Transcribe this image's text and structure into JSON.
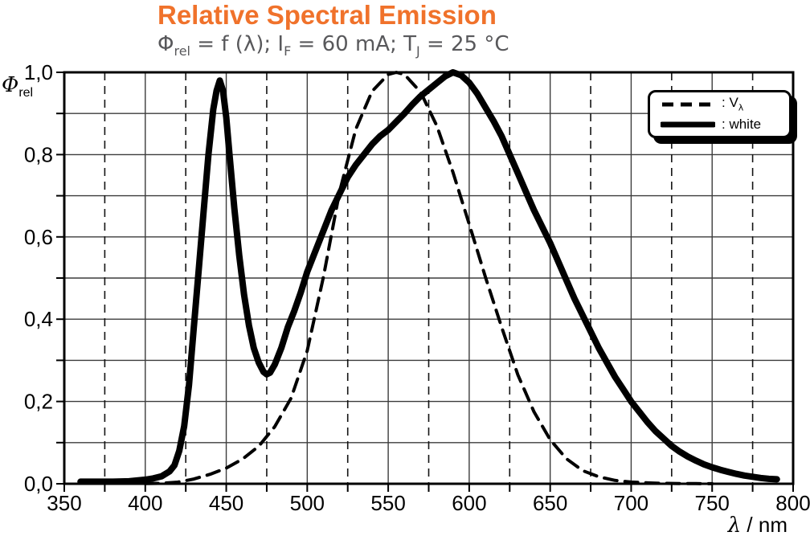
{
  "title": {
    "text": "Relative Spectral Emission",
    "color": "#F0722B"
  },
  "subtitle": {
    "color": "#58585B",
    "s1": "Φ",
    "s1sub": "rel",
    "s2": " = f (λ); I",
    "s2sub": "F",
    "s3": " = 60 mA; T",
    "s3sub": "J",
    "s4": " = 25 °C"
  },
  "legend": {
    "v_prefix": ": V",
    "v_sub": "λ",
    "white_label": ": white"
  },
  "chart_data": {
    "type": "line",
    "title": "Relative Spectral Emission",
    "subtitle_plain": "Phi_rel = f(lambda); I_F = 60 mA; T_J = 25 °C",
    "xlabel": {
      "greek": "λ",
      "rest": " / nm"
    },
    "ylabel": {
      "greek": "Φ",
      "sub": "rel"
    },
    "xlim": [
      350,
      800
    ],
    "ylim": [
      0,
      1
    ],
    "x_major_step": 50,
    "x_minor_step": 25,
    "y_minor_step": 0.1,
    "grid": {
      "solid_color": "#3C3C3C",
      "dashed_color": "#141414"
    },
    "axis_color": "#000000",
    "legend_position": "top-right",
    "x_tick_labels": [
      {
        "v": 350,
        "label": "350"
      },
      {
        "v": 400,
        "label": "400"
      },
      {
        "v": 450,
        "label": "450"
      },
      {
        "v": 500,
        "label": "500"
      },
      {
        "v": 550,
        "label": "550"
      },
      {
        "v": 600,
        "label": "600"
      },
      {
        "v": 650,
        "label": "650"
      },
      {
        "v": 700,
        "label": "700"
      },
      {
        "v": 750,
        "label": "750"
      },
      {
        "v": 800,
        "label": "800"
      }
    ],
    "y_tick_labels": [
      {
        "v": 0.0,
        "label": "0,0"
      },
      {
        "v": 0.2,
        "label": "0,2"
      },
      {
        "v": 0.4,
        "label": "0,4"
      },
      {
        "v": 0.6,
        "label": "0,6"
      },
      {
        "v": 0.8,
        "label": "0,8"
      },
      {
        "v": 1.0,
        "label": "1,0"
      }
    ],
    "series": [
      {
        "name": "V_lambda",
        "label": ": V_lambda",
        "style": "dashed",
        "stroke_width": 4,
        "dash": "16 10",
        "color": "#000000",
        "points": [
          [
            400,
            0.0004
          ],
          [
            410,
            0.0012
          ],
          [
            420,
            0.004
          ],
          [
            430,
            0.0116
          ],
          [
            440,
            0.023
          ],
          [
            450,
            0.038
          ],
          [
            460,
            0.06
          ],
          [
            470,
            0.091
          ],
          [
            480,
            0.139
          ],
          [
            490,
            0.208
          ],
          [
            500,
            0.323
          ],
          [
            510,
            0.503
          ],
          [
            520,
            0.71
          ],
          [
            530,
            0.862
          ],
          [
            540,
            0.954
          ],
          [
            550,
            0.995
          ],
          [
            555,
            1.0
          ],
          [
            560,
            0.995
          ],
          [
            570,
            0.952
          ],
          [
            580,
            0.87
          ],
          [
            590,
            0.757
          ],
          [
            600,
            0.631
          ],
          [
            610,
            0.503
          ],
          [
            620,
            0.381
          ],
          [
            630,
            0.265
          ],
          [
            640,
            0.175
          ],
          [
            650,
            0.107
          ],
          [
            660,
            0.061
          ],
          [
            670,
            0.032
          ],
          [
            680,
            0.017
          ],
          [
            690,
            0.0082
          ],
          [
            700,
            0.0041
          ],
          [
            710,
            0.0021
          ],
          [
            720,
            0.001
          ],
          [
            730,
            0.0005
          ],
          [
            740,
            0.0003
          ],
          [
            750,
            0.0002
          ]
        ]
      },
      {
        "name": "white",
        "label": ": white",
        "style": "solid",
        "stroke_width": 8,
        "dash": "",
        "color": "#000000",
        "points": [
          [
            360,
            0.005
          ],
          [
            370,
            0.005
          ],
          [
            380,
            0.005
          ],
          [
            390,
            0.006
          ],
          [
            400,
            0.01
          ],
          [
            405,
            0.013
          ],
          [
            410,
            0.018
          ],
          [
            415,
            0.03
          ],
          [
            418,
            0.045
          ],
          [
            421,
            0.08
          ],
          [
            424,
            0.14
          ],
          [
            427,
            0.24
          ],
          [
            430,
            0.38
          ],
          [
            433,
            0.52
          ],
          [
            436,
            0.66
          ],
          [
            439,
            0.8
          ],
          [
            442,
            0.91
          ],
          [
            444,
            0.955
          ],
          [
            446,
            0.98
          ],
          [
            448,
            0.955
          ],
          [
            450,
            0.89
          ],
          [
            452,
            0.8
          ],
          [
            455,
            0.67
          ],
          [
            458,
            0.555
          ],
          [
            461,
            0.46
          ],
          [
            464,
            0.385
          ],
          [
            467,
            0.33
          ],
          [
            470,
            0.295
          ],
          [
            473,
            0.272
          ],
          [
            475,
            0.266
          ],
          [
            477,
            0.27
          ],
          [
            480,
            0.29
          ],
          [
            484,
            0.33
          ],
          [
            488,
            0.38
          ],
          [
            492,
            0.42
          ],
          [
            496,
            0.465
          ],
          [
            500,
            0.515
          ],
          [
            505,
            0.565
          ],
          [
            510,
            0.615
          ],
          [
            515,
            0.665
          ],
          [
            520,
            0.705
          ],
          [
            525,
            0.745
          ],
          [
            530,
            0.775
          ],
          [
            535,
            0.8
          ],
          [
            540,
            0.825
          ],
          [
            545,
            0.845
          ],
          [
            550,
            0.86
          ],
          [
            555,
            0.88
          ],
          [
            560,
            0.9
          ],
          [
            565,
            0.922
          ],
          [
            570,
            0.942
          ],
          [
            575,
            0.958
          ],
          [
            580,
            0.974
          ],
          [
            585,
            0.99
          ],
          [
            590,
            1.0
          ],
          [
            595,
            0.993
          ],
          [
            600,
            0.975
          ],
          [
            605,
            0.948
          ],
          [
            610,
            0.915
          ],
          [
            615,
            0.882
          ],
          [
            620,
            0.845
          ],
          [
            625,
            0.8
          ],
          [
            630,
            0.755
          ],
          [
            635,
            0.71
          ],
          [
            640,
            0.665
          ],
          [
            645,
            0.625
          ],
          [
            650,
            0.585
          ],
          [
            655,
            0.54
          ],
          [
            660,
            0.495
          ],
          [
            665,
            0.45
          ],
          [
            670,
            0.41
          ],
          [
            675,
            0.37
          ],
          [
            680,
            0.33
          ],
          [
            685,
            0.295
          ],
          [
            690,
            0.26
          ],
          [
            695,
            0.23
          ],
          [
            700,
            0.2
          ],
          [
            705,
            0.175
          ],
          [
            710,
            0.15
          ],
          [
            715,
            0.128
          ],
          [
            720,
            0.11
          ],
          [
            725,
            0.092
          ],
          [
            730,
            0.078
          ],
          [
            735,
            0.066
          ],
          [
            740,
            0.056
          ],
          [
            745,
            0.047
          ],
          [
            750,
            0.04
          ],
          [
            755,
            0.034
          ],
          [
            760,
            0.029
          ],
          [
            765,
            0.024
          ],
          [
            770,
            0.02
          ],
          [
            775,
            0.017
          ],
          [
            780,
            0.014
          ],
          [
            785,
            0.012
          ],
          [
            790,
            0.011
          ]
        ]
      }
    ]
  }
}
